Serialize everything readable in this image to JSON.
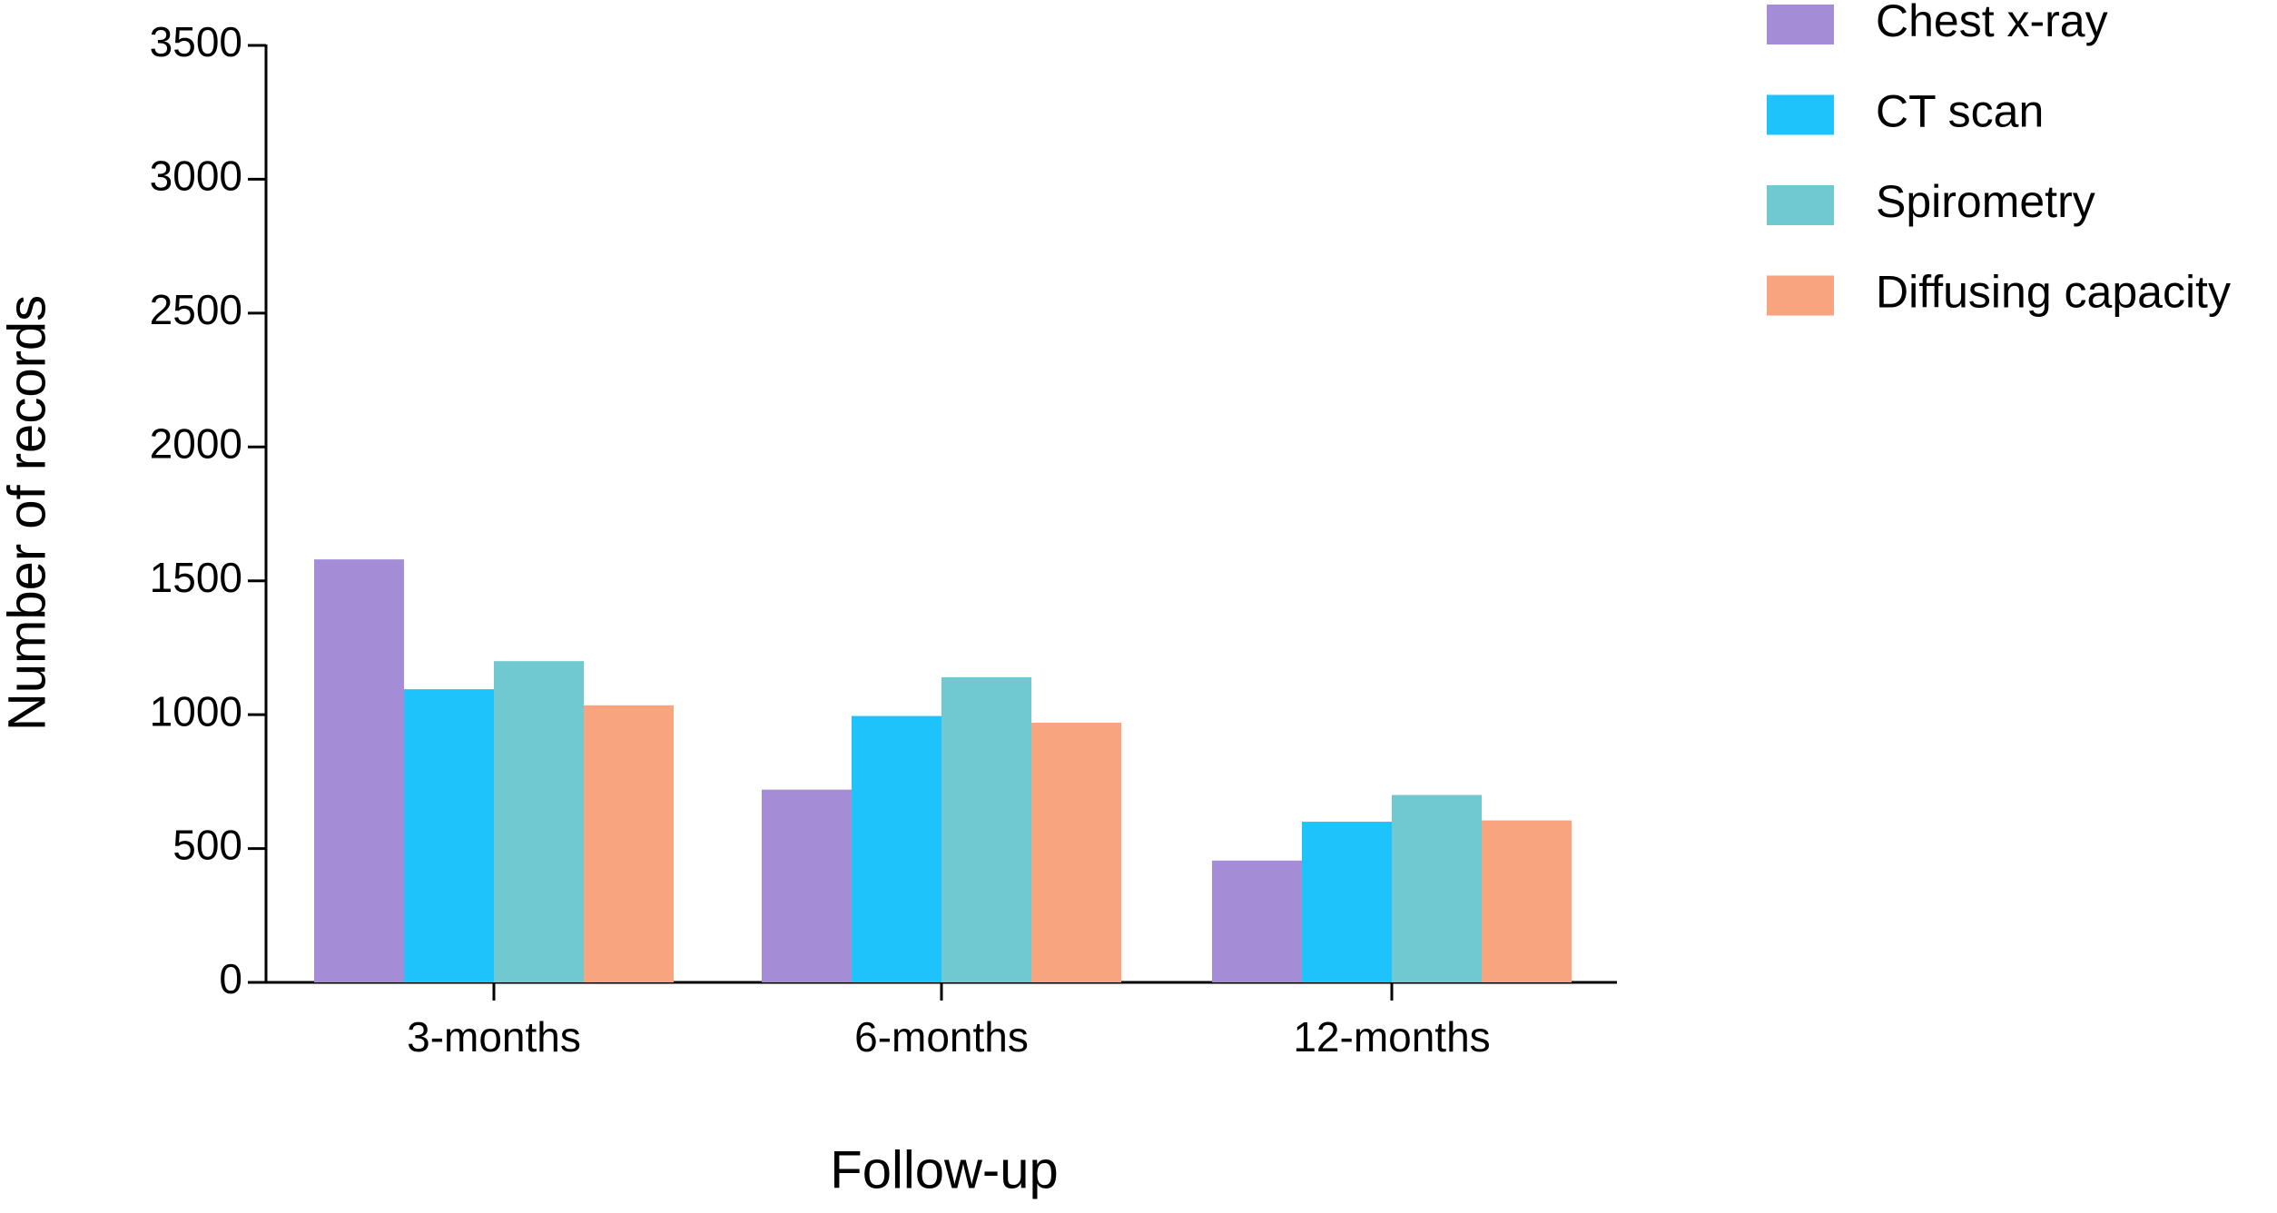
{
  "chart_data": {
    "type": "bar",
    "x_label": "Follow-up",
    "y_label": "Number of records",
    "categories": [
      "3-months",
      "6-months",
      "12-months"
    ],
    "series": [
      {
        "name": "Chest x-ray",
        "color": "#a58cd6",
        "values": [
          1580,
          720,
          455
        ]
      },
      {
        "name": "CT scan",
        "color": "#1ec3fc",
        "values": [
          1095,
          995,
          600
        ]
      },
      {
        "name": "Spirometry",
        "color": "#70c8d0",
        "values": [
          1200,
          1140,
          700
        ]
      },
      {
        "name": "Diffusing capacity",
        "color": "#f8a47e",
        "values": [
          1035,
          970,
          605
        ]
      }
    ],
    "ylim": [
      0,
      3500
    ],
    "yticks": [
      0,
      500,
      1000,
      1500,
      2000,
      2500,
      3000,
      3500
    ],
    "grid": false,
    "legend": "upper right"
  }
}
